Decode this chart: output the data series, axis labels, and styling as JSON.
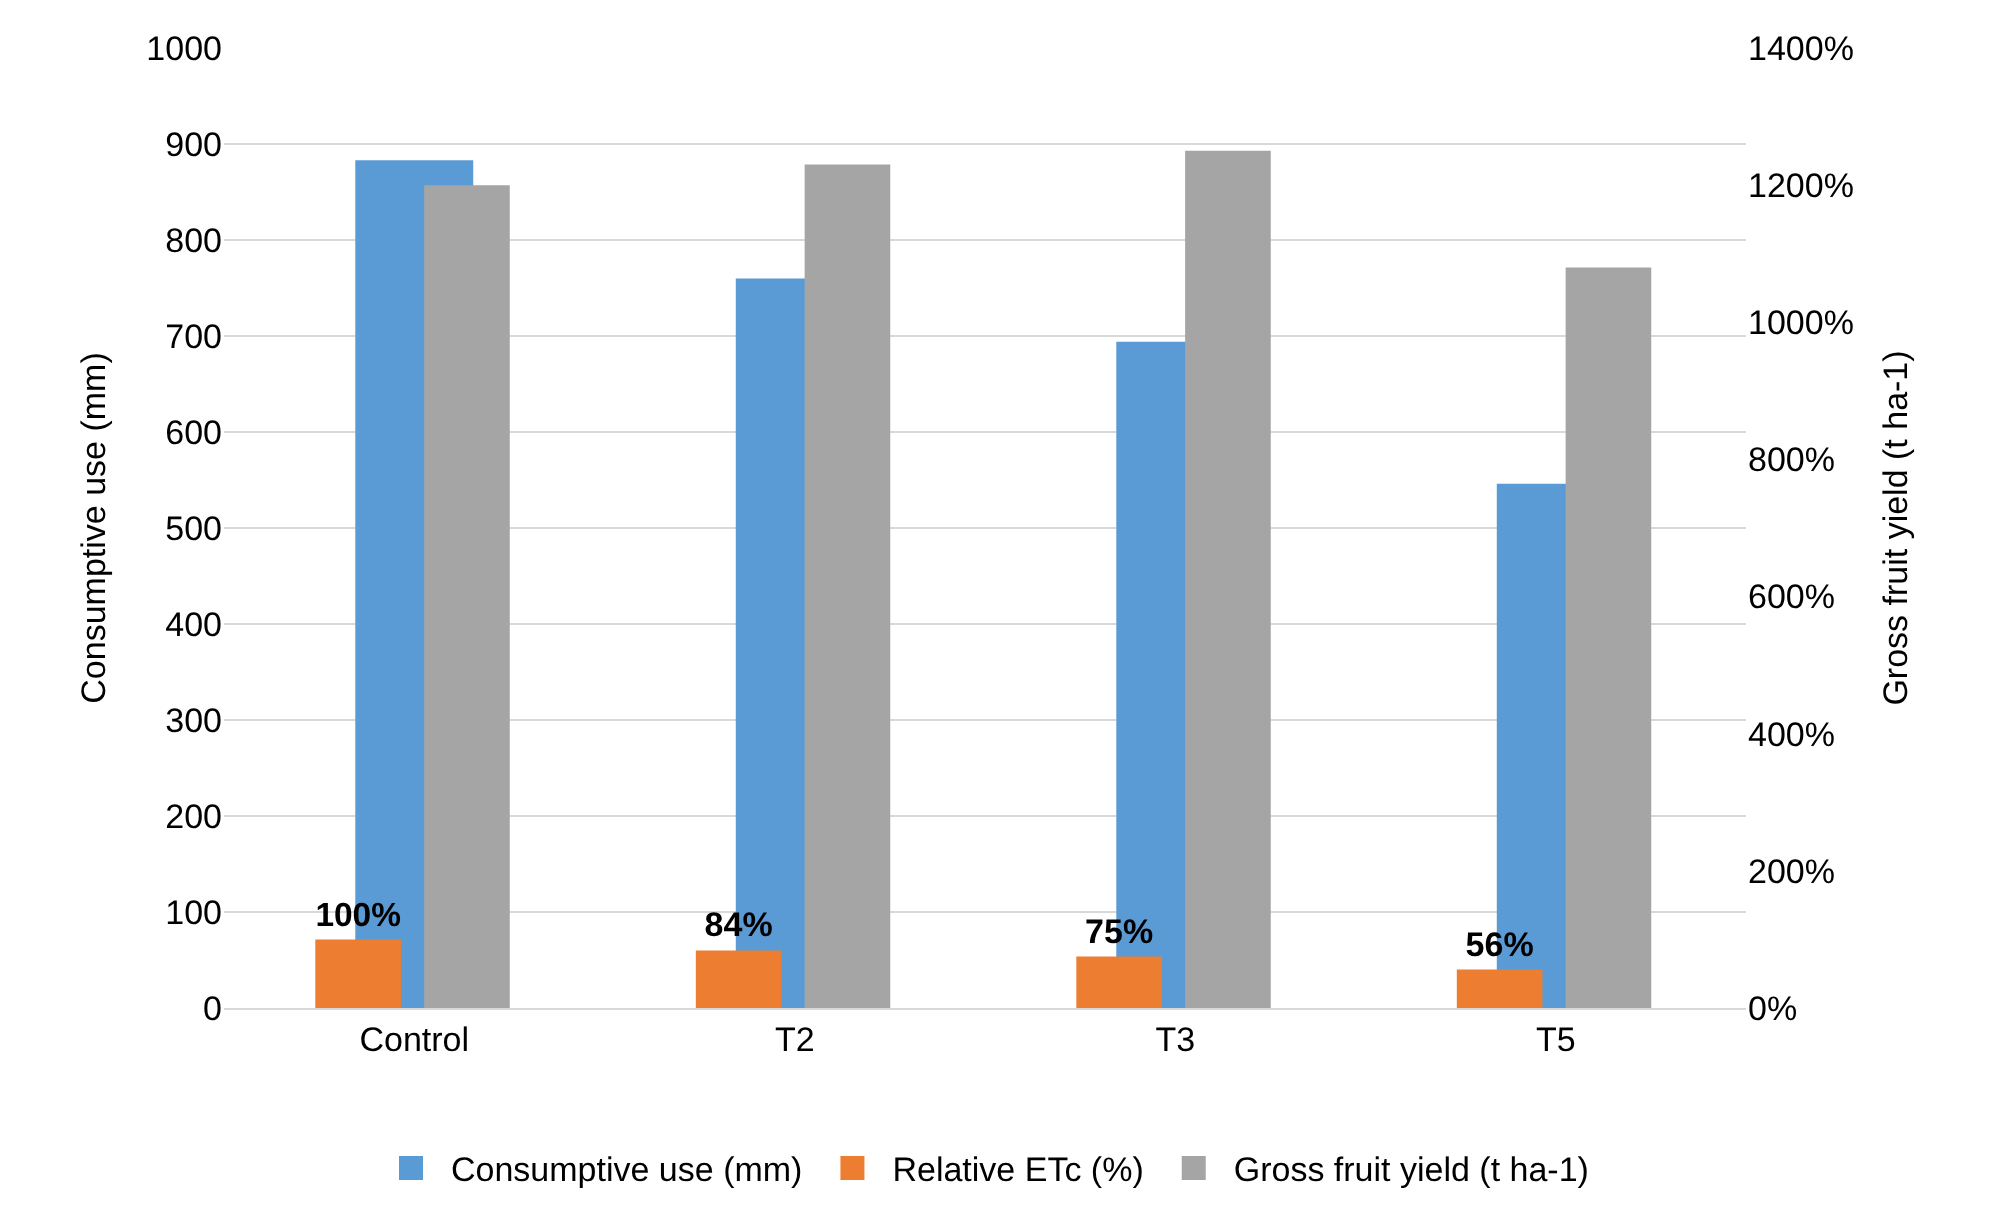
{
  "chart_data": {
    "type": "bar",
    "categories": [
      "Control",
      "T2",
      "T3",
      "T5"
    ],
    "ylabel": "Consumptive use (mm)",
    "y2label": "Gross fruit yield (t ha-1)",
    "series": [
      {
        "name": "Consumptive use (mm)",
        "color": "#5b9bd5",
        "values": [
          883,
          760,
          694,
          546
        ]
      },
      {
        "name": "Relative ETc (%)",
        "color": "#ed7d31",
        "values": [
          100,
          84,
          75,
          56
        ],
        "axis": "y2",
        "value_labels": [
          "100%",
          "84%",
          "75%",
          "56%"
        ]
      },
      {
        "name": "Gross fruit yield (t ha-1)",
        "color": "#a5a5a5",
        "values": [
          1200,
          1230,
          1250,
          1080
        ],
        "axis": "y2"
      }
    ],
    "ylim": [
      0,
      1000
    ],
    "yticks": [
      0,
      100,
      200,
      300,
      400,
      500,
      600,
      700,
      800,
      900,
      1000
    ],
    "y2lim": [
      0,
      1400
    ],
    "y2ticks": [
      {
        "value": 0,
        "label": "0%"
      },
      {
        "value": 200,
        "label": "200%"
      },
      {
        "value": 400,
        "label": "400%"
      },
      {
        "value": 600,
        "label": "600%"
      },
      {
        "value": 800,
        "label": "800%"
      },
      {
        "value": 1000,
        "label": "1000%"
      },
      {
        "value": 1200,
        "label": "1200%"
      },
      {
        "value": 1400,
        "label": "1400%"
      }
    ],
    "grid": "y",
    "legend": "bottom"
  }
}
